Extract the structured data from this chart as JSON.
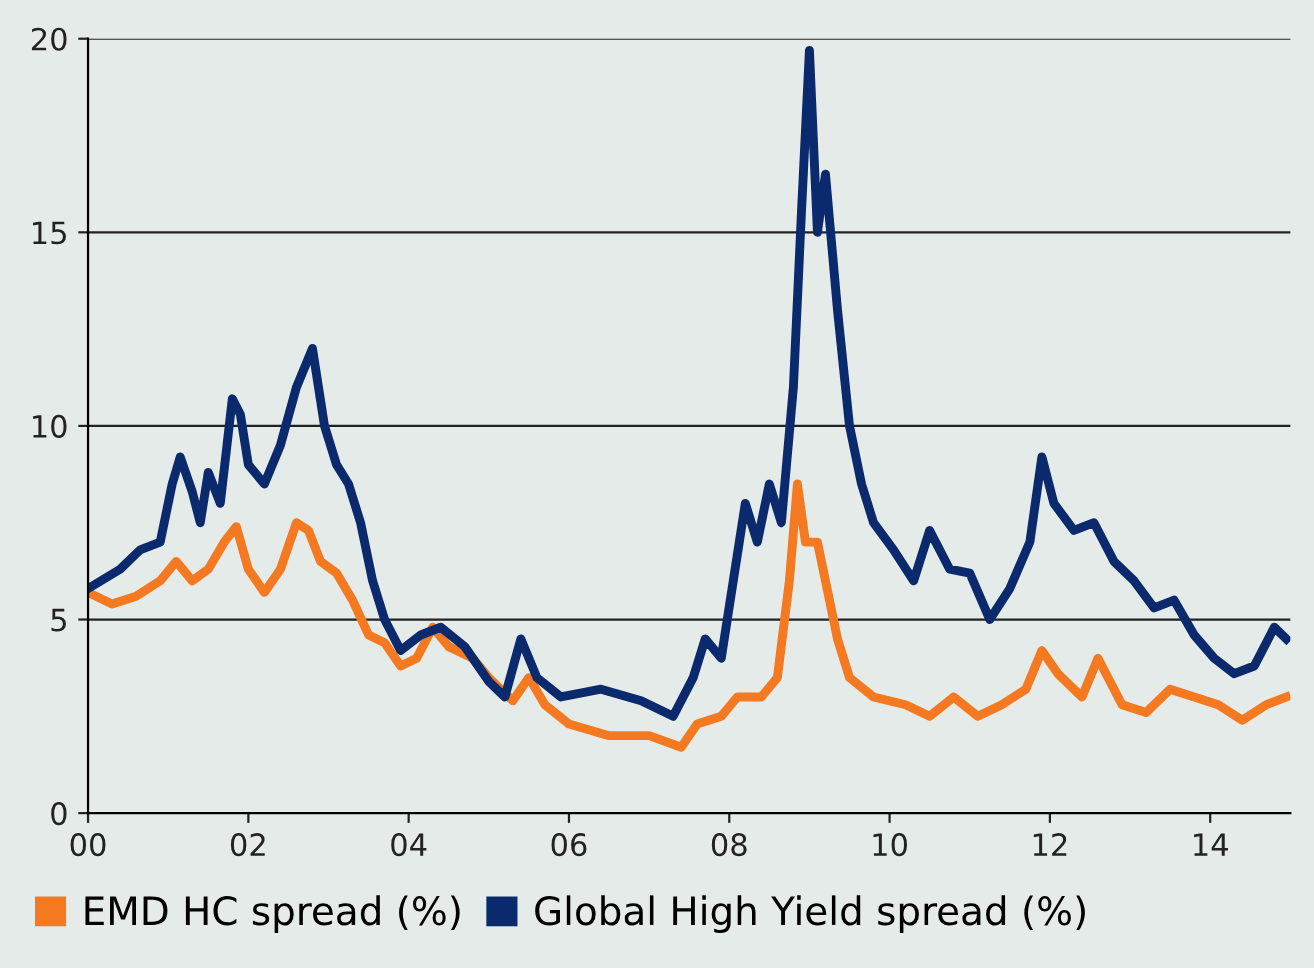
{
  "chart_data": {
    "type": "line",
    "xlim": [
      0,
      15
    ],
    "xticks": [
      {
        "value": 0,
        "label": "00"
      },
      {
        "value": 2,
        "label": "02"
      },
      {
        "value": 4,
        "label": "04"
      },
      {
        "value": 6,
        "label": "06"
      },
      {
        "value": 8,
        "label": "08"
      },
      {
        "value": 10,
        "label": "10"
      },
      {
        "value": 12,
        "label": "12"
      },
      {
        "value": 14,
        "label": "14"
      }
    ],
    "ylim": [
      0,
      20
    ],
    "yticks": [
      0,
      5,
      10,
      15,
      20
    ],
    "grid": "y",
    "legend": "bottom",
    "series": [
      {
        "name": "EMD HC spread (%)",
        "color": "#f47920",
        "x": [
          0.0,
          0.3,
          0.6,
          0.9,
          1.1,
          1.3,
          1.5,
          1.7,
          1.85,
          2.0,
          2.2,
          2.4,
          2.6,
          2.75,
          2.9,
          3.1,
          3.3,
          3.5,
          3.7,
          3.9,
          4.1,
          4.3,
          4.5,
          4.8,
          5.0,
          5.3,
          5.5,
          5.7,
          6.0,
          6.5,
          7.0,
          7.4,
          7.6,
          7.9,
          8.1,
          8.4,
          8.6,
          8.75,
          8.85,
          8.95,
          9.1,
          9.2,
          9.35,
          9.5,
          9.8,
          10.2,
          10.5,
          10.8,
          11.1,
          11.4,
          11.7,
          11.9,
          12.1,
          12.4,
          12.6,
          12.9,
          13.2,
          13.5,
          13.8,
          14.1,
          14.4,
          14.7,
          14.95
        ],
        "values": [
          5.7,
          5.4,
          5.6,
          6.0,
          6.5,
          6.0,
          6.3,
          7.0,
          7.4,
          6.3,
          5.7,
          6.3,
          7.5,
          7.3,
          6.5,
          6.2,
          5.5,
          4.6,
          4.4,
          3.8,
          4.0,
          4.8,
          4.3,
          4.0,
          3.5,
          2.9,
          3.5,
          2.8,
          2.3,
          2.0,
          2.0,
          1.7,
          2.3,
          2.5,
          3.0,
          3.0,
          3.5,
          6.0,
          8.5,
          7.0,
          7.0,
          6.0,
          4.5,
          3.5,
          3.0,
          2.8,
          2.5,
          3.0,
          2.5,
          2.8,
          3.2,
          4.2,
          3.6,
          3.0,
          4.0,
          2.8,
          2.6,
          3.2,
          3.0,
          2.8,
          2.4,
          2.8,
          3.0
        ]
      },
      {
        "name": "Global High Yield spread (%)",
        "color": "#0b2a6e",
        "x": [
          0.0,
          0.4,
          0.65,
          0.9,
          1.05,
          1.15,
          1.3,
          1.4,
          1.5,
          1.65,
          1.8,
          1.9,
          2.0,
          2.2,
          2.4,
          2.6,
          2.8,
          2.95,
          3.1,
          3.25,
          3.4,
          3.55,
          3.7,
          3.9,
          4.15,
          4.4,
          4.7,
          5.0,
          5.2,
          5.4,
          5.6,
          5.9,
          6.4,
          6.9,
          7.3,
          7.55,
          7.7,
          7.9,
          8.05,
          8.2,
          8.35,
          8.5,
          8.65,
          8.8,
          8.9,
          9.0,
          9.1,
          9.2,
          9.35,
          9.5,
          9.65,
          9.8,
          10.05,
          10.3,
          10.5,
          10.75,
          11.0,
          11.25,
          11.5,
          11.75,
          11.9,
          12.05,
          12.3,
          12.55,
          12.8,
          13.05,
          13.3,
          13.55,
          13.8,
          14.05,
          14.3,
          14.55,
          14.8,
          14.95
        ],
        "values": [
          5.8,
          6.3,
          6.8,
          7.0,
          8.5,
          9.2,
          8.3,
          7.5,
          8.8,
          8.0,
          10.7,
          10.3,
          9.0,
          8.5,
          9.5,
          11.0,
          12.0,
          10.0,
          9.0,
          8.5,
          7.5,
          6.0,
          5.0,
          4.2,
          4.6,
          4.8,
          4.3,
          3.4,
          3.0,
          4.5,
          3.5,
          3.0,
          3.2,
          2.9,
          2.5,
          3.5,
          4.5,
          4.0,
          6.0,
          8.0,
          7.0,
          8.5,
          7.5,
          11.0,
          15.5,
          19.7,
          15.0,
          16.5,
          13.0,
          10.0,
          8.5,
          7.5,
          6.8,
          6.0,
          7.3,
          6.3,
          6.2,
          5.0,
          5.8,
          7.0,
          9.2,
          8.0,
          7.3,
          7.5,
          6.5,
          6.0,
          5.3,
          5.5,
          4.6,
          4.0,
          3.6,
          3.8,
          4.8,
          4.5
        ]
      }
    ]
  }
}
